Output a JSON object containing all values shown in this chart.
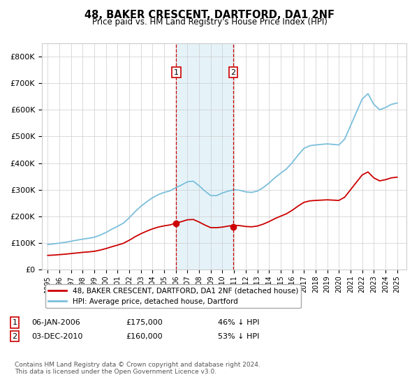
{
  "title": "48, BAKER CRESCENT, DARTFORD, DA1 2NF",
  "subtitle": "Price paid vs. HM Land Registry's House Price Index (HPI)",
  "ylim": [
    0,
    850000
  ],
  "yticks": [
    0,
    100000,
    200000,
    300000,
    400000,
    500000,
    600000,
    700000,
    800000
  ],
  "hpi_color": "#7bbfdb",
  "price_color": "#cc0000",
  "marker_color": "#cc0000",
  "vline_color": "#cc0000",
  "vshade_color": "#daeef7",
  "annotation_box_color": "#cc0000",
  "legend_house_label": "48, BAKER CRESCENT, DARTFORD, DA1 2NF (detached house)",
  "legend_hpi_label": "HPI: Average price, detached house, Dartford",
  "transaction1_x": 2006.04,
  "transaction1_price": 175000,
  "transaction1_text1": "06-JAN-2006",
  "transaction1_text2": "£175,000",
  "transaction1_text3": "46% ↓ HPI",
  "transaction2_x": 2010.92,
  "transaction2_price": 160000,
  "transaction2_text1": "03-DEC-2010",
  "transaction2_text2": "£160,000",
  "transaction2_text3": "53% ↓ HPI",
  "footer": "Contains HM Land Registry data © Crown copyright and database right 2024.\nThis data is licensed under the Open Government Licence v3.0.",
  "background_color": "#ffffff",
  "grid_color": "#cccccc",
  "xlim_left": 1994.5,
  "xlim_right": 2025.8
}
